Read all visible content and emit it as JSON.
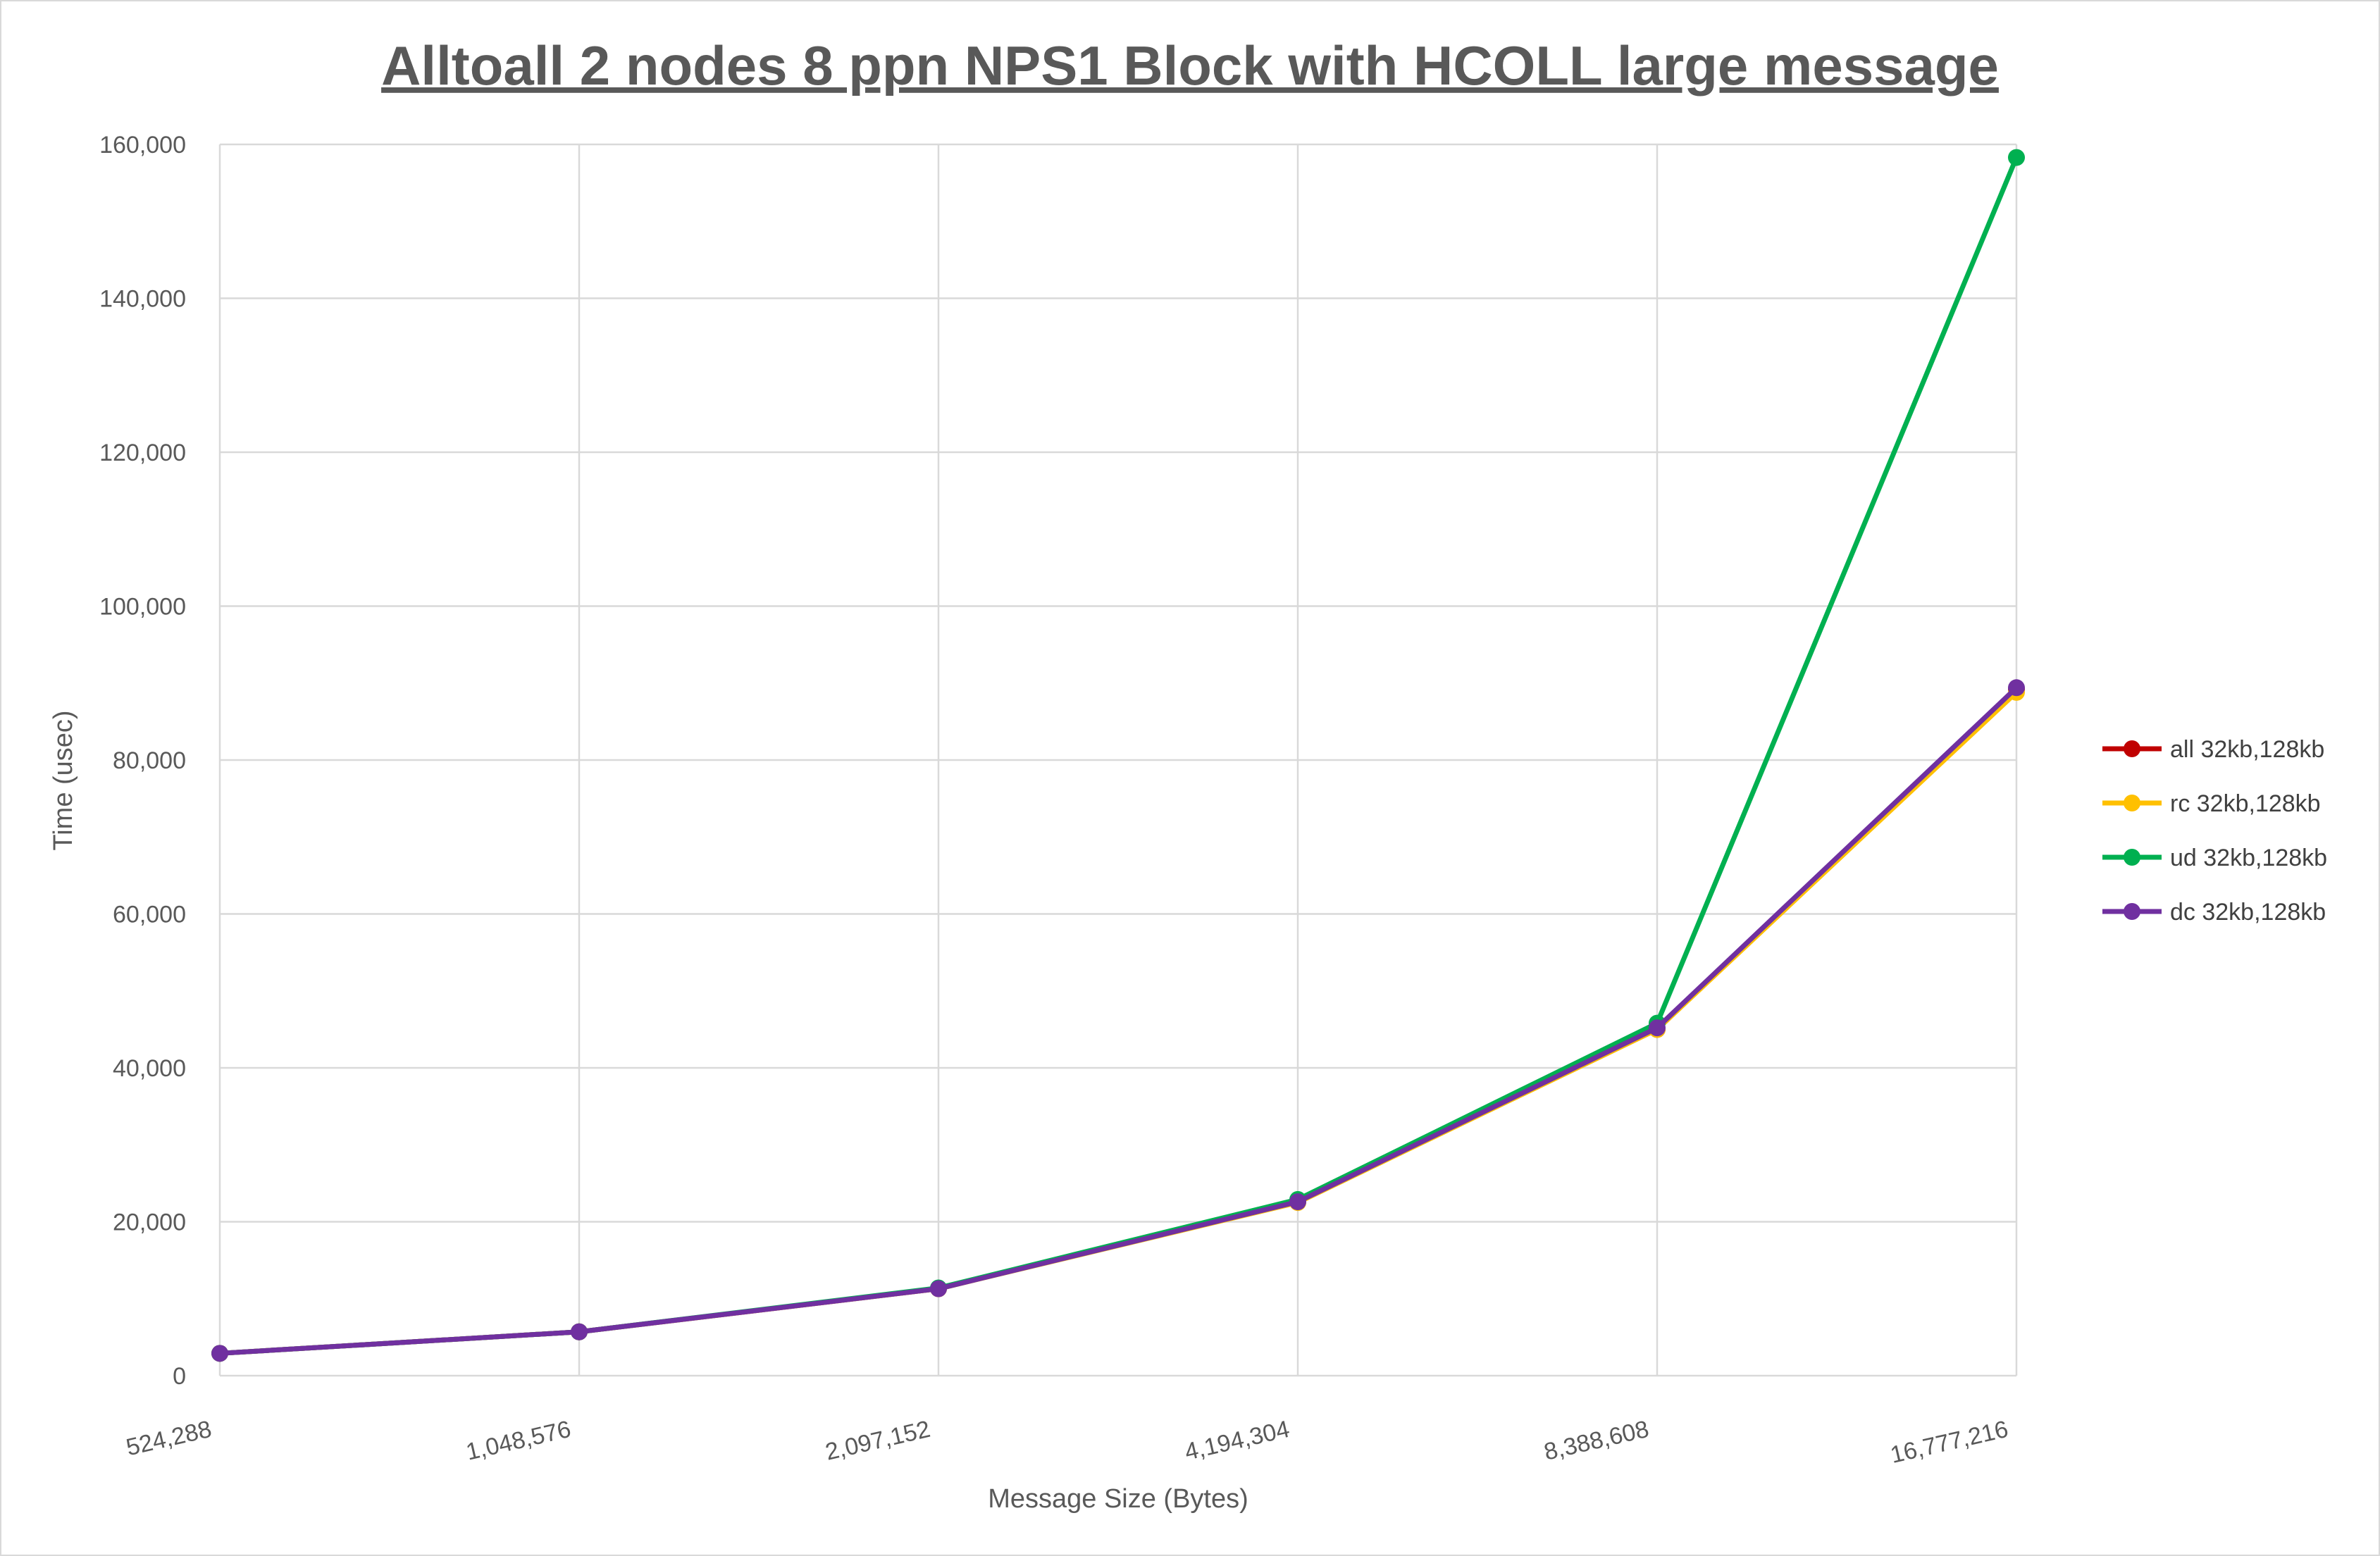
{
  "chart_data": {
    "type": "line",
    "title": "Alltoall 2 nodes 8 ppn NPS1 Block with HCOLL large message",
    "xlabel": "Message Size (Bytes)",
    "ylabel": "Time (usec)",
    "categories": [
      "524,288",
      "1,048,576",
      "2,097,152",
      "4,194,304",
      "8,388,608",
      "16,777,216"
    ],
    "ylim": [
      0,
      160000
    ],
    "yticks": [
      0,
      20000,
      40000,
      60000,
      80000,
      100000,
      120000,
      140000,
      160000
    ],
    "ytick_labels": [
      "0",
      "20,000",
      "40,000",
      "60,000",
      "80,000",
      "100,000",
      "120,000",
      "140,000",
      "160,000"
    ],
    "grid": true,
    "legend_position": "right",
    "series": [
      {
        "name": "all 32kb,128kb",
        "color": "#c00000",
        "values": [
          2900,
          5700,
          11300,
          22600,
          45000,
          89200
        ]
      },
      {
        "name": "rc 32kb,128kb",
        "color": "#ffc000",
        "values": [
          2900,
          5700,
          11300,
          22500,
          45000,
          88800
        ]
      },
      {
        "name": "ud 32kb,128kb",
        "color": "#00b050",
        "values": [
          2900,
          5700,
          11400,
          22900,
          45800,
          158300
        ]
      },
      {
        "name": "dc 32kb,128kb",
        "color": "#7030a0",
        "values": [
          2900,
          5700,
          11300,
          22600,
          45200,
          89400
        ]
      }
    ]
  }
}
